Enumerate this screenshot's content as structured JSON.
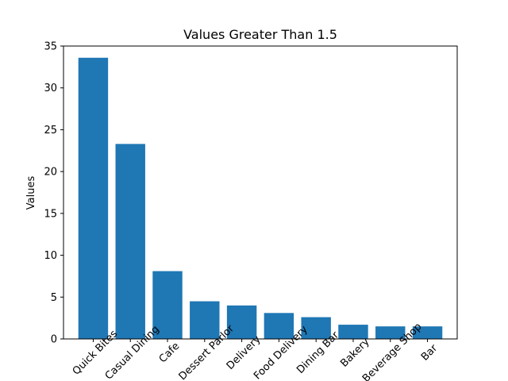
{
  "chart_data": {
    "type": "bar",
    "title": "Values Greater Than 1.5",
    "xlabel": "",
    "ylabel": "Values",
    "categories": [
      "Quick Bites",
      "Casual Dining",
      "Cafe",
      "Dessert Parlor",
      "Delivery",
      "Food Delivery",
      "Dining Bar",
      "Bakery",
      "Beverage Shop",
      "Bar"
    ],
    "values": [
      33.6,
      23.3,
      8.1,
      4.5,
      4.0,
      3.1,
      2.6,
      1.7,
      1.5,
      1.5
    ],
    "ylim": [
      0,
      35
    ],
    "yticks": [
      0,
      5,
      10,
      15,
      20,
      25,
      30,
      35
    ],
    "grid": false,
    "bar_color": "#1f77b4"
  }
}
